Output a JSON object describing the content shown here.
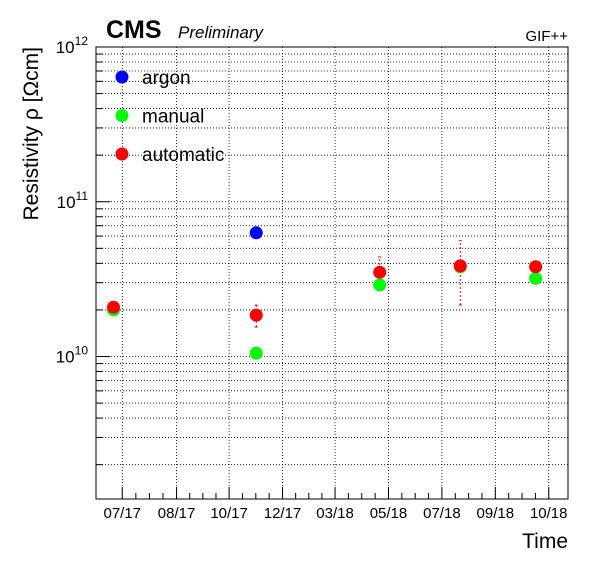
{
  "chart_data": {
    "type": "scatter",
    "header": {
      "experiment": "CMS",
      "status": "Preliminary",
      "facility": "GIF++"
    },
    "xlabel": "Time",
    "ylabel": "Resistivity ρ [Ωcm]",
    "yscale": "log",
    "ylim": [
      1200000000.0,
      1000000000000.0
    ],
    "y_tick_labels": [
      {
        "value": 10000000000.0,
        "base": "10",
        "exp": "10"
      },
      {
        "value": 100000000000.0,
        "base": "10",
        "exp": "11"
      },
      {
        "value": 1000000000000.0,
        "base": "10",
        "exp": "12"
      }
    ],
    "xlim": [
      "2017-06-01",
      "2018-11-22"
    ],
    "x_ticks": [
      {
        "date": "2017-07-01",
        "label": "07/17"
      },
      {
        "date": "2017-09-01",
        "label": "08/17"
      },
      {
        "date": "2017-10-31",
        "label": "10/17"
      },
      {
        "date": "2017-12-31",
        "label": "12/17"
      },
      {
        "date": "2018-03-01",
        "label": "03/18"
      },
      {
        "date": "2018-05-01",
        "label": "05/18"
      },
      {
        "date": "2018-07-01",
        "label": "07/18"
      },
      {
        "date": "2018-08-31",
        "label": "09/18"
      },
      {
        "date": "2018-10-31",
        "label": "10/18"
      }
    ],
    "grid": true,
    "legend_position": "top-left",
    "series": [
      {
        "name": "argon",
        "color": "#0000ff",
        "points": [
          {
            "x": "2017-12-01",
            "y": 63000000000.0
          }
        ]
      },
      {
        "name": "manual",
        "color": "#00ff00",
        "points": [
          {
            "x": "2017-06-21",
            "y": 20000000000.0
          },
          {
            "x": "2017-12-01",
            "y": 10500000000.0
          },
          {
            "x": "2018-04-21",
            "y": 29000000000.0
          },
          {
            "x": "2018-07-22",
            "y": 38000000000.0
          },
          {
            "x": "2018-10-16",
            "y": 32000000000.0
          }
        ]
      },
      {
        "name": "automatic",
        "color": "#ff0000",
        "points": [
          {
            "x": "2017-06-21",
            "y": 20800000000.0
          },
          {
            "x": "2017-12-01",
            "y": 18500000000.0,
            "yerr": [
              15500000000.0,
              21500000000.0
            ]
          },
          {
            "x": "2018-04-21",
            "y": 35000000000.0,
            "yerr": [
              29000000000.0,
              44000000000.0
            ]
          },
          {
            "x": "2018-07-22",
            "y": 38500000000.0,
            "yerr": [
              21500000000.0,
              56000000000.0
            ]
          },
          {
            "x": "2018-10-16",
            "y": 38000000000.0
          }
        ]
      }
    ]
  }
}
